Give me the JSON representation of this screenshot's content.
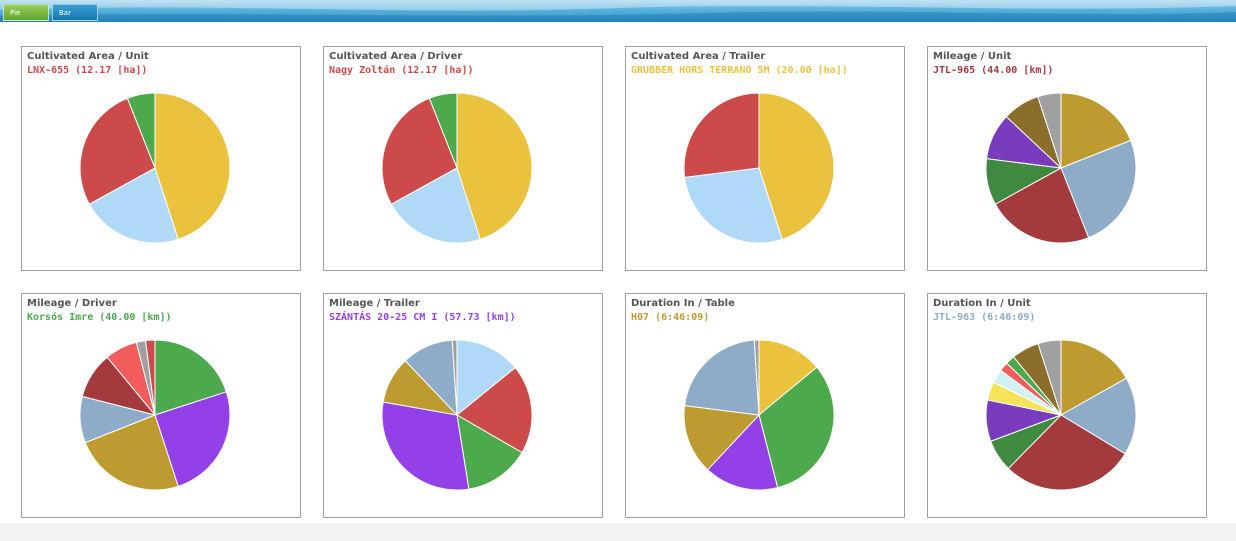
{
  "tabs": [
    {
      "label": "Pie charts",
      "active": true
    },
    {
      "label": "Bar chars",
      "active": false
    }
  ],
  "colors": {
    "gold": "#EBC23E",
    "light_blue": "#B0D8F7",
    "red": "#CC4A4A",
    "green": "#4CAA4C",
    "olive_gold": "#BE9B31",
    "steel_blue": "#8EABC7",
    "dark_red": "#A33A3D",
    "dark_green": "#3F8A3F",
    "purple": "#7B3BBD",
    "bright_purple": "#9440E8",
    "brown": "#8B6E2A",
    "gray": "#A0A0A0",
    "salmon": "#F25C5C",
    "yellow": "#F7E35A",
    "pale_cyan": "#D2F1F5"
  },
  "chart_data": [
    {
      "type": "pie",
      "title": "Cultivated Area / Unit",
      "subtitle": "LNX-655 (12.17 [ha])",
      "subtitle_color": "#CC4A4A",
      "slices": [
        {
          "value": 45,
          "color": "#EBC23E"
        },
        {
          "value": 22,
          "color": "#B0D8F7"
        },
        {
          "value": 27,
          "color": "#CC4A4A"
        },
        {
          "value": 6,
          "color": "#4CAA4C"
        }
      ]
    },
    {
      "type": "pie",
      "title": "Cultivated Area / Driver",
      "subtitle": "Nagy Zoltán (12.17 [ha])",
      "subtitle_color": "#CC4A4A",
      "slices": [
        {
          "value": 45,
          "color": "#EBC23E"
        },
        {
          "value": 22,
          "color": "#B0D8F7"
        },
        {
          "value": 27,
          "color": "#CC4A4A"
        },
        {
          "value": 6,
          "color": "#4CAA4C"
        }
      ]
    },
    {
      "type": "pie",
      "title": "Cultivated Area / Trailer",
      "subtitle": "GRUBBER HORS TERRANO 5M (20.00 [ha])",
      "subtitle_color": "#EBC23E",
      "slices": [
        {
          "value": 45,
          "color": "#EBC23E"
        },
        {
          "value": 28,
          "color": "#B0D8F7"
        },
        {
          "value": 27,
          "color": "#CC4A4A"
        }
      ]
    },
    {
      "type": "pie",
      "title": "Mileage / Unit",
      "subtitle": "JTL-965 (44.00 [km])",
      "subtitle_color": "#A33A3D",
      "slices": [
        {
          "value": 19,
          "color": "#BE9B31"
        },
        {
          "value": 25,
          "color": "#8EABC7"
        },
        {
          "value": 23,
          "color": "#A33A3D"
        },
        {
          "value": 10,
          "color": "#3F8A3F"
        },
        {
          "value": 10,
          "color": "#7B3BBD"
        },
        {
          "value": 8,
          "color": "#8B6E2A"
        },
        {
          "value": 5,
          "color": "#A0A0A0"
        }
      ]
    },
    {
      "type": "pie",
      "title": "Mileage / Driver",
      "subtitle": "Korsós Imre (40.00 [km])",
      "subtitle_color": "#4CAA4C",
      "slices": [
        {
          "value": 20,
          "color": "#4CAA4C"
        },
        {
          "value": 25,
          "color": "#9440E8"
        },
        {
          "value": 24,
          "color": "#BE9B31"
        },
        {
          "value": 10,
          "color": "#8EABC7"
        },
        {
          "value": 10,
          "color": "#A33A3D"
        },
        {
          "value": 7,
          "color": "#F25C5C"
        },
        {
          "value": 2,
          "color": "#A0A0A0"
        },
        {
          "value": 2,
          "color": "#CC4A4A"
        }
      ]
    },
    {
      "type": "pie",
      "title": "Mileage / Trailer",
      "subtitle": "SZÁNTÁS 20-25 CM I (57.73 [km])",
      "subtitle_color": "#9440E8",
      "slices": [
        {
          "value": 14,
          "color": "#B0D8F7"
        },
        {
          "value": 19,
          "color": "#CC4A4A"
        },
        {
          "value": 14,
          "color": "#4CAA4C"
        },
        {
          "value": 30,
          "color": "#9440E8"
        },
        {
          "value": 10,
          "color": "#BE9B31"
        },
        {
          "value": 11,
          "color": "#8EABC7"
        },
        {
          "value": 1,
          "color": "#A0A0A0"
        }
      ]
    },
    {
      "type": "pie",
      "title": "Duration In / Table",
      "subtitle": "H07 (6:46:09)",
      "subtitle_color": "#BE9B31",
      "slices": [
        {
          "value": 14,
          "color": "#EBC23E"
        },
        {
          "value": 32,
          "color": "#4CAA4C"
        },
        {
          "value": 16,
          "color": "#9440E8"
        },
        {
          "value": 15,
          "color": "#BE9B31"
        },
        {
          "value": 22,
          "color": "#8EABC7"
        },
        {
          "value": 1,
          "color": "#A0A0A0"
        }
      ]
    },
    {
      "type": "pie",
      "title": "Duration In / Unit",
      "subtitle": "JTL-963 (6:46:09)",
      "subtitle_color": "#8EABC7",
      "slices": [
        {
          "value": 17,
          "color": "#BE9B31"
        },
        {
          "value": 17,
          "color": "#8EABC7"
        },
        {
          "value": 29,
          "color": "#A33A3D"
        },
        {
          "value": 7,
          "color": "#3F8A3F"
        },
        {
          "value": 9,
          "color": "#7B3BBD"
        },
        {
          "value": 4,
          "color": "#F7E35A"
        },
        {
          "value": 3,
          "color": "#D2F1F5"
        },
        {
          "value": 2,
          "color": "#F25C5C"
        },
        {
          "value": 2,
          "color": "#4CAA4C"
        },
        {
          "value": 6,
          "color": "#8B6E2A"
        },
        {
          "value": 5,
          "color": "#A0A0A0"
        }
      ]
    }
  ]
}
